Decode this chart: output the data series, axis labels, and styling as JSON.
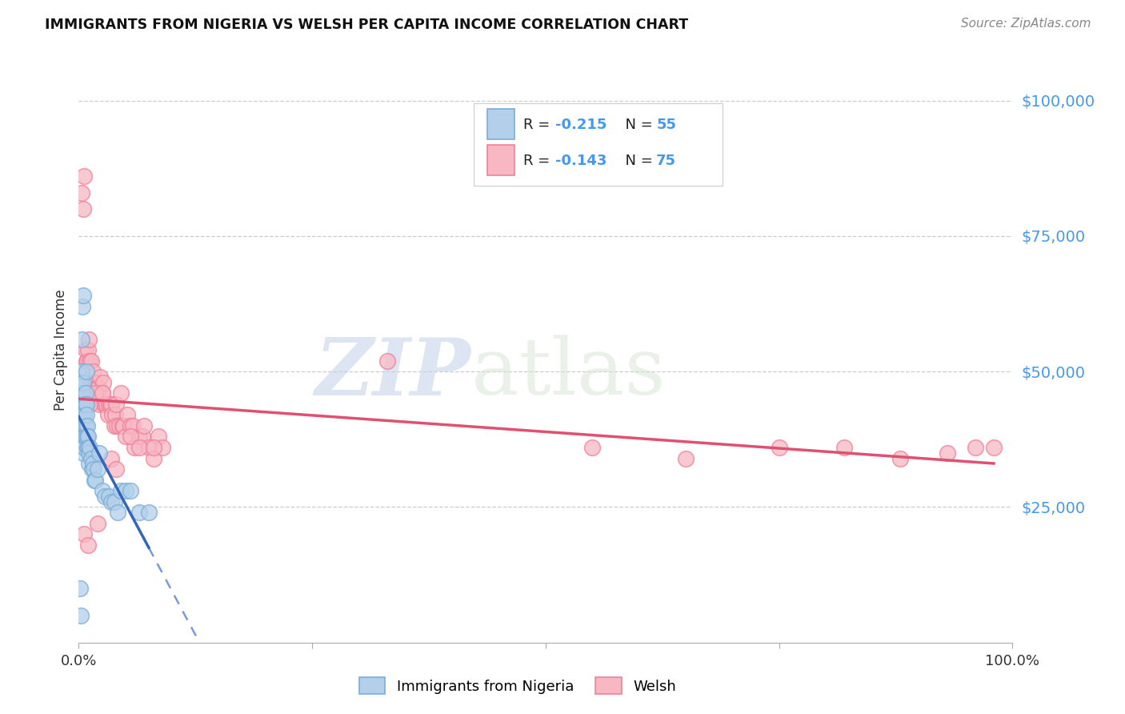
{
  "title": "IMMIGRANTS FROM NIGERIA VS WELSH PER CAPITA INCOME CORRELATION CHART",
  "source": "Source: ZipAtlas.com",
  "ylabel": "Per Capita Income",
  "yticks": [
    0,
    25000,
    50000,
    75000,
    100000
  ],
  "ytick_labels": [
    "",
    "$25,000",
    "$50,000",
    "$75,000",
    "$100,000"
  ],
  "legend1_label": "Immigrants from Nigeria",
  "legend2_label": "Welsh",
  "R1": -0.215,
  "N1": 55,
  "R2": -0.143,
  "N2": 75,
  "color_nigeria": "#7BADD6",
  "color_nigeria_fill": "#B3CFEA",
  "color_welsh": "#F08098",
  "color_welsh_fill": "#F7B8C4",
  "color_line_nigeria": "#3366BB",
  "color_line_welsh": "#E05070",
  "color_axis_labels": "#4499EE",
  "nigeria_x": [
    0.001,
    0.002,
    0.002,
    0.003,
    0.003,
    0.003,
    0.004,
    0.004,
    0.004,
    0.004,
    0.005,
    0.005,
    0.005,
    0.005,
    0.005,
    0.005,
    0.006,
    0.006,
    0.006,
    0.006,
    0.007,
    0.007,
    0.007,
    0.007,
    0.008,
    0.008,
    0.008,
    0.009,
    0.009,
    0.009,
    0.01,
    0.01,
    0.011,
    0.011,
    0.012,
    0.013,
    0.014,
    0.015,
    0.016,
    0.017,
    0.018,
    0.02,
    0.022,
    0.025,
    0.028,
    0.032,
    0.035,
    0.038,
    0.042,
    0.045,
    0.05,
    0.055,
    0.065,
    0.075,
    0.002
  ],
  "nigeria_y": [
    10000,
    42000,
    48000,
    50000,
    44000,
    56000,
    46000,
    62000,
    42000,
    40000,
    64000,
    48000,
    44000,
    42000,
    38000,
    35000,
    44000,
    42000,
    38000,
    36000,
    46000,
    44000,
    40000,
    38000,
    50000,
    44000,
    42000,
    40000,
    38000,
    36000,
    38000,
    36000,
    35000,
    33000,
    36000,
    34000,
    32000,
    33000,
    32000,
    30000,
    30000,
    32000,
    35000,
    28000,
    27000,
    27000,
    26000,
    26000,
    24000,
    28000,
    28000,
    28000,
    24000,
    24000,
    5000
  ],
  "welsh_x": [
    0.003,
    0.005,
    0.006,
    0.007,
    0.008,
    0.009,
    0.009,
    0.01,
    0.01,
    0.011,
    0.011,
    0.012,
    0.013,
    0.013,
    0.014,
    0.015,
    0.016,
    0.017,
    0.018,
    0.019,
    0.02,
    0.021,
    0.022,
    0.023,
    0.025,
    0.026,
    0.027,
    0.028,
    0.03,
    0.031,
    0.032,
    0.034,
    0.035,
    0.036,
    0.038,
    0.039,
    0.04,
    0.041,
    0.043,
    0.045,
    0.047,
    0.048,
    0.05,
    0.052,
    0.055,
    0.058,
    0.06,
    0.065,
    0.068,
    0.07,
    0.075,
    0.08,
    0.085,
    0.09,
    0.007,
    0.012,
    0.018,
    0.025,
    0.035,
    0.04,
    0.055,
    0.065,
    0.08,
    0.33,
    0.55,
    0.65,
    0.75,
    0.82,
    0.88,
    0.93,
    0.96,
    0.98,
    0.006,
    0.01,
    0.02
  ],
  "welsh_y": [
    83000,
    80000,
    86000,
    54000,
    52000,
    52000,
    46000,
    54000,
    48000,
    56000,
    46000,
    52000,
    52000,
    46000,
    48000,
    50000,
    48000,
    46000,
    48000,
    47000,
    46000,
    47000,
    44000,
    49000,
    46000,
    48000,
    44000,
    44000,
    44000,
    42000,
    44000,
    44000,
    44000,
    42000,
    40000,
    42000,
    44000,
    40000,
    40000,
    46000,
    40000,
    40000,
    38000,
    42000,
    40000,
    40000,
    36000,
    38000,
    38000,
    40000,
    36000,
    34000,
    38000,
    36000,
    46000,
    44000,
    46000,
    46000,
    34000,
    32000,
    38000,
    36000,
    36000,
    52000,
    36000,
    34000,
    36000,
    36000,
    34000,
    35000,
    36000,
    36000,
    20000,
    18000,
    22000
  ]
}
